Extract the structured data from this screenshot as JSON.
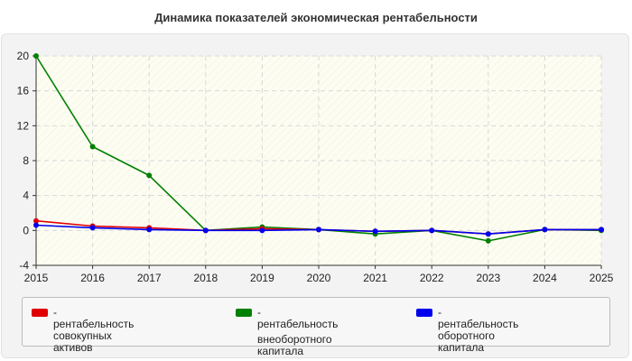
{
  "title": "Динамика показателей экономическая рентабельности",
  "chart_data": {
    "type": "line",
    "x": [
      2015,
      2016,
      2017,
      2018,
      2019,
      2020,
      2021,
      2022,
      2023,
      2024,
      2025
    ],
    "ylim": [
      -4,
      20
    ],
    "yticks": [
      -4,
      0,
      4,
      8,
      12,
      16,
      20
    ],
    "grid": true,
    "legend_position": "bottom",
    "series": [
      {
        "name": "- рентабельность совокупных активов",
        "color": "#e00000",
        "values": [
          1.1,
          0.5,
          0.3,
          0.0,
          0.2,
          0.1,
          -0.1,
          0.0,
          -0.4,
          0.1,
          0.1
        ]
      },
      {
        "name": "- рентабельность внеоборотного капитала",
        "color": "#008000",
        "values": [
          20.0,
          9.6,
          6.3,
          0.0,
          0.4,
          0.1,
          -0.4,
          0.0,
          -1.2,
          0.1,
          0.0
        ]
      },
      {
        "name": "- рентабельность оборотного капитала",
        "color": "#0000ee",
        "values": [
          0.6,
          0.3,
          0.1,
          0.0,
          0.0,
          0.1,
          -0.1,
          0.0,
          -0.4,
          0.1,
          0.1
        ]
      }
    ]
  },
  "legend": {
    "items": [
      {
        "lines": [
          "- рентабельность совокупных",
          "активов"
        ]
      },
      {
        "lines": [
          "- рентабельность",
          "внеоборотного капитала"
        ]
      },
      {
        "lines": [
          "- рентабельность оборотного",
          "капитала"
        ]
      }
    ]
  }
}
